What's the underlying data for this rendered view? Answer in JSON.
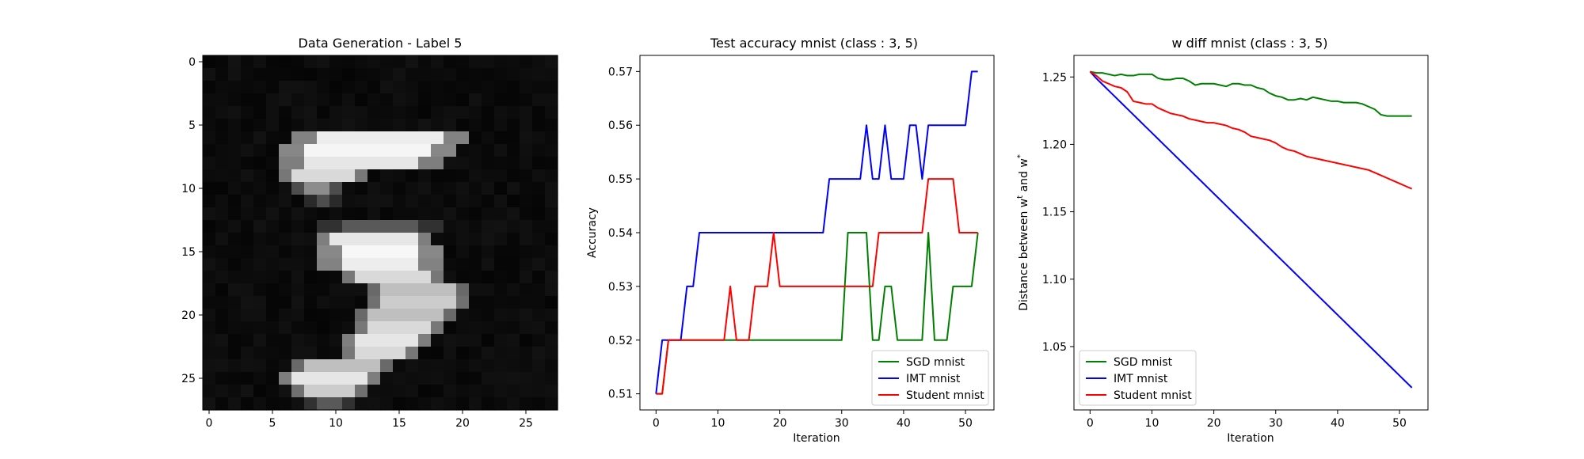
{
  "colors": {
    "sgd": "#008000",
    "imt": "#0000ff",
    "student": "#ff0000"
  },
  "chart_data": [
    {
      "type": "heatmap",
      "title": "Data Generation - Label 5",
      "xlim": [
        -0.5,
        27.5
      ],
      "ylim": [
        27.5,
        -0.5
      ],
      "xticks": [
        0,
        5,
        10,
        15,
        20,
        25
      ],
      "yticks": [
        0,
        5,
        10,
        15,
        20,
        25
      ],
      "xtick_labels": [
        "0",
        "5",
        "10",
        "15",
        "20",
        "25"
      ],
      "ytick_labels": [
        "0",
        "5",
        "10",
        "15",
        "20",
        "25"
      ],
      "grid": false,
      "colormap": "gray",
      "segments": [
        {
          "row": 6,
          "c0": 7,
          "c1": 20,
          "v": 0.93
        },
        {
          "row": 7,
          "c0": 6,
          "c1": 19,
          "v": 0.96
        },
        {
          "row": 8,
          "c0": 6,
          "c1": 18,
          "v": 0.9
        },
        {
          "row": 9,
          "c0": 6,
          "c1": 12,
          "v": 0.85
        },
        {
          "row": 10,
          "c0": 7,
          "c1": 10,
          "v": 0.55
        },
        {
          "row": 11,
          "c0": 8,
          "c1": 10,
          "v": 0.3
        },
        {
          "row": 13,
          "c0": 9,
          "c1": 18,
          "v": 0.35
        },
        {
          "row": 14,
          "c0": 9,
          "c1": 17,
          "v": 0.9
        },
        {
          "row": 15,
          "c0": 9,
          "c1": 18,
          "v": 0.97
        },
        {
          "row": 16,
          "c0": 9,
          "c1": 18,
          "v": 0.93
        },
        {
          "row": 17,
          "c0": 11,
          "c1": 18,
          "v": 0.85
        },
        {
          "row": 18,
          "c0": 13,
          "c1": 20,
          "v": 0.75
        },
        {
          "row": 19,
          "c0": 13,
          "c1": 20,
          "v": 0.8
        },
        {
          "row": 20,
          "c0": 12,
          "c1": 19,
          "v": 0.75
        },
        {
          "row": 21,
          "c0": 12,
          "c1": 18,
          "v": 0.85
        },
        {
          "row": 22,
          "c0": 11,
          "c1": 17,
          "v": 0.9
        },
        {
          "row": 23,
          "c0": 11,
          "c1": 16,
          "v": 0.85
        },
        {
          "row": 24,
          "c0": 7,
          "c1": 14,
          "v": 0.75
        },
        {
          "row": 25,
          "c0": 6,
          "c1": 13,
          "v": 0.9
        },
        {
          "row": 26,
          "c0": 7,
          "c1": 12,
          "v": 0.8
        },
        {
          "row": 27,
          "c0": 8,
          "c1": 11,
          "v": 0.35
        }
      ]
    },
    {
      "type": "line",
      "title": "Test accuracy mnist (class : 3, 5)",
      "xlabel": "Iteration",
      "ylabel": "Accuracy",
      "xlim": [
        -2.6,
        54.6
      ],
      "ylim": [
        0.507,
        0.573
      ],
      "xticks": [
        0,
        10,
        20,
        30,
        40,
        50
      ],
      "yticks": [
        0.51,
        0.52,
        0.53,
        0.54,
        0.55,
        0.56,
        0.57
      ],
      "xtick_labels": [
        "0",
        "10",
        "20",
        "30",
        "40",
        "50"
      ],
      "ytick_labels": [
        "0.51",
        "0.52",
        "0.53",
        "0.54",
        "0.55",
        "0.56",
        "0.57"
      ],
      "grid": false,
      "legend": "lower-right",
      "x": [
        0,
        1,
        2,
        3,
        4,
        5,
        6,
        7,
        8,
        9,
        10,
        11,
        12,
        13,
        14,
        15,
        16,
        17,
        18,
        19,
        20,
        21,
        22,
        23,
        24,
        25,
        26,
        27,
        28,
        29,
        30,
        31,
        32,
        33,
        34,
        35,
        36,
        37,
        38,
        39,
        40,
        41,
        42,
        43,
        44,
        45,
        46,
        47,
        48,
        49,
        50,
        51,
        52
      ],
      "series": [
        {
          "name": "SGD mnist",
          "color_key": "sgd",
          "values": [
            0.51,
            0.51,
            0.52,
            0.52,
            0.52,
            0.52,
            0.52,
            0.52,
            0.52,
            0.52,
            0.52,
            0.52,
            0.52,
            0.52,
            0.52,
            0.52,
            0.52,
            0.52,
            0.52,
            0.52,
            0.52,
            0.52,
            0.52,
            0.52,
            0.52,
            0.52,
            0.52,
            0.52,
            0.52,
            0.52,
            0.52,
            0.54,
            0.54,
            0.54,
            0.54,
            0.52,
            0.52,
            0.53,
            0.53,
            0.52,
            0.52,
            0.52,
            0.52,
            0.52,
            0.54,
            0.52,
            0.52,
            0.52,
            0.53,
            0.53,
            0.53,
            0.53,
            0.54
          ]
        },
        {
          "name": "IMT mnist",
          "color_key": "imt",
          "values": [
            0.51,
            0.52,
            0.52,
            0.52,
            0.52,
            0.53,
            0.53,
            0.54,
            0.54,
            0.54,
            0.54,
            0.54,
            0.54,
            0.54,
            0.54,
            0.54,
            0.54,
            0.54,
            0.54,
            0.54,
            0.54,
            0.54,
            0.54,
            0.54,
            0.54,
            0.54,
            0.54,
            0.54,
            0.55,
            0.55,
            0.55,
            0.55,
            0.55,
            0.55,
            0.56,
            0.55,
            0.55,
            0.56,
            0.55,
            0.55,
            0.55,
            0.56,
            0.56,
            0.55,
            0.56,
            0.56,
            0.56,
            0.56,
            0.56,
            0.56,
            0.56,
            0.57,
            0.57
          ]
        },
        {
          "name": "Student mnist",
          "color_key": "student",
          "values": [
            0.51,
            0.51,
            0.52,
            0.52,
            0.52,
            0.52,
            0.52,
            0.52,
            0.52,
            0.52,
            0.52,
            0.52,
            0.53,
            0.52,
            0.52,
            0.52,
            0.53,
            0.53,
            0.53,
            0.54,
            0.53,
            0.53,
            0.53,
            0.53,
            0.53,
            0.53,
            0.53,
            0.53,
            0.53,
            0.53,
            0.53,
            0.53,
            0.53,
            0.53,
            0.53,
            0.53,
            0.54,
            0.54,
            0.54,
            0.54,
            0.54,
            0.54,
            0.54,
            0.54,
            0.55,
            0.55,
            0.55,
            0.55,
            0.55,
            0.54,
            0.54,
            0.54,
            0.54
          ]
        }
      ]
    },
    {
      "type": "line",
      "title": "w diff mnist (class : 3, 5)",
      "xlabel": "Iteration",
      "ylabel": "Distance between w",
      "ylabel_sup1": "t",
      "ylabel_mid": " and w",
      "ylabel_sup2": "*",
      "xlim": [
        -2.6,
        54.6
      ],
      "ylim": [
        1.003,
        1.266
      ],
      "xticks": [
        0,
        10,
        20,
        30,
        40,
        50
      ],
      "yticks": [
        1.05,
        1.1,
        1.15,
        1.2,
        1.25
      ],
      "xtick_labels": [
        "0",
        "10",
        "20",
        "30",
        "40",
        "50"
      ],
      "ytick_labels": [
        "1.05",
        "1.10",
        "1.15",
        "1.20",
        "1.25"
      ],
      "grid": false,
      "legend": "lower-left",
      "x": [
        0,
        1,
        2,
        3,
        4,
        5,
        6,
        7,
        8,
        9,
        10,
        11,
        12,
        13,
        14,
        15,
        16,
        17,
        18,
        19,
        20,
        21,
        22,
        23,
        24,
        25,
        26,
        27,
        28,
        29,
        30,
        31,
        32,
        33,
        34,
        35,
        36,
        37,
        38,
        39,
        40,
        41,
        42,
        43,
        44,
        45,
        46,
        47,
        48,
        49,
        50,
        51,
        52
      ],
      "series": [
        {
          "name": "SGD mnist",
          "color_key": "sgd",
          "values": [
            1.254,
            1.253,
            1.253,
            1.252,
            1.251,
            1.252,
            1.251,
            1.251,
            1.252,
            1.252,
            1.252,
            1.249,
            1.248,
            1.248,
            1.249,
            1.249,
            1.247,
            1.244,
            1.245,
            1.245,
            1.245,
            1.244,
            1.243,
            1.245,
            1.245,
            1.244,
            1.244,
            1.242,
            1.241,
            1.238,
            1.236,
            1.235,
            1.233,
            1.233,
            1.234,
            1.233,
            1.235,
            1.234,
            1.233,
            1.232,
            1.232,
            1.231,
            1.231,
            1.231,
            1.23,
            1.228,
            1.226,
            1.222,
            1.221,
            1.221,
            1.221,
            1.221,
            1.221
          ]
        },
        {
          "name": "IMT mnist",
          "color_key": "imt",
          "values": [
            1.254,
            1.249,
            1.2445,
            1.24,
            1.2355,
            1.231,
            1.2265,
            1.222,
            1.2175,
            1.213,
            1.2085,
            1.204,
            1.1995,
            1.195,
            1.1905,
            1.186,
            1.1815,
            1.177,
            1.1725,
            1.168,
            1.1635,
            1.159,
            1.1545,
            1.15,
            1.1455,
            1.141,
            1.1365,
            1.132,
            1.1275,
            1.123,
            1.1185,
            1.114,
            1.1095,
            1.105,
            1.1005,
            1.096,
            1.0915,
            1.087,
            1.0825,
            1.078,
            1.0735,
            1.069,
            1.0645,
            1.06,
            1.0555,
            1.051,
            1.0465,
            1.042,
            1.0375,
            1.033,
            1.0285,
            1.024,
            1.0195
          ]
        },
        {
          "name": "Student mnist",
          "color_key": "student",
          "values": [
            1.254,
            1.251,
            1.247,
            1.245,
            1.243,
            1.242,
            1.239,
            1.232,
            1.231,
            1.23,
            1.23,
            1.227,
            1.225,
            1.223,
            1.222,
            1.221,
            1.219,
            1.218,
            1.217,
            1.216,
            1.216,
            1.215,
            1.214,
            1.212,
            1.211,
            1.209,
            1.206,
            1.205,
            1.204,
            1.203,
            1.201,
            1.198,
            1.196,
            1.195,
            1.193,
            1.191,
            1.19,
            1.189,
            1.188,
            1.187,
            1.186,
            1.185,
            1.184,
            1.183,
            1.182,
            1.181,
            1.179,
            1.177,
            1.175,
            1.173,
            1.171,
            1.169,
            1.167
          ]
        }
      ]
    }
  ]
}
